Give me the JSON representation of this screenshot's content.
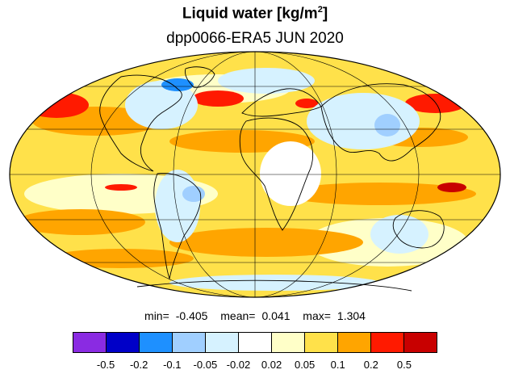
{
  "title": "Liquid water  [kg/m",
  "title_unit_exponent": "2",
  "title_close": "]",
  "subtitle": "dpp0066-ERA5 JUN 2020",
  "stats": {
    "min_label": "min=",
    "min_value": "-0.405",
    "mean_label": "mean=",
    "mean_value": "0.041",
    "max_label": "max=",
    "max_value": "1.304"
  },
  "map": {
    "projection": "mollweide",
    "grid": true,
    "coastlines": true
  },
  "colorbar": {
    "colors": [
      "#8a2be2",
      "#0000c8",
      "#1e90ff",
      "#a0cfff",
      "#d6f2ff",
      "#ffffff",
      "#ffffc8",
      "#ffe14a",
      "#ffa500",
      "#ff1a00",
      "#c80000"
    ],
    "tick_labels": [
      "-0.5",
      "-0.2",
      "-0.1",
      "-0.05",
      "-0.02",
      "0.02",
      "0.05",
      "0.1",
      "0.2",
      "0.5"
    ]
  }
}
